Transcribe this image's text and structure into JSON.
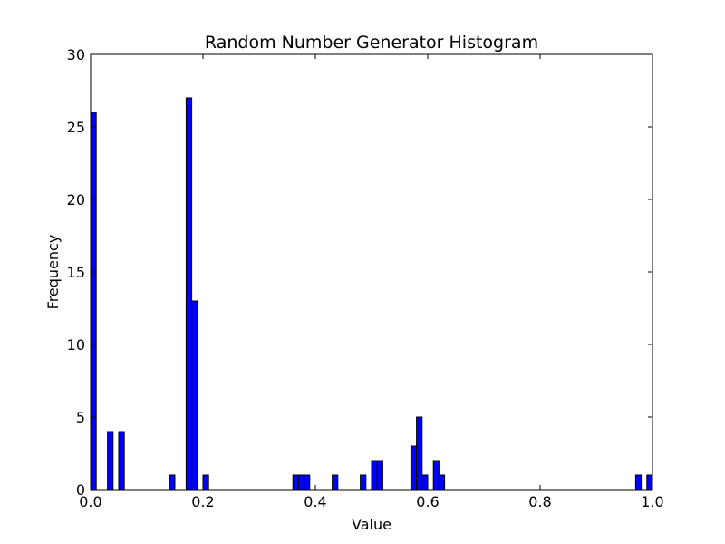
{
  "chart_data": {
    "type": "bar",
    "title": "Random Number Generator Histogram",
    "xlabel": "Value",
    "ylabel": "Frequency",
    "xlim": [
      0,
      1
    ],
    "ylim": [
      0,
      30
    ],
    "bin_width": 0.01,
    "bar_color": "#0000ff",
    "edge_color": "#000000",
    "grid": false,
    "x_ticks": [
      0.0,
      0.2,
      0.4,
      0.6,
      0.8,
      1.0
    ],
    "x_tick_labels": [
      "0.0",
      "0.2",
      "0.4",
      "0.6",
      "0.8",
      "1.0"
    ],
    "y_ticks": [
      0,
      5,
      10,
      15,
      20,
      25,
      30
    ],
    "y_tick_labels": [
      "0",
      "5",
      "10",
      "15",
      "20",
      "25",
      "30"
    ],
    "bins": [
      {
        "x": 0.0,
        "value": 26
      },
      {
        "x": 0.03,
        "value": 4
      },
      {
        "x": 0.05,
        "value": 4
      },
      {
        "x": 0.14,
        "value": 1
      },
      {
        "x": 0.17,
        "value": 27
      },
      {
        "x": 0.18,
        "value": 13
      },
      {
        "x": 0.2,
        "value": 1
      },
      {
        "x": 0.36,
        "value": 1
      },
      {
        "x": 0.37,
        "value": 1
      },
      {
        "x": 0.38,
        "value": 1
      },
      {
        "x": 0.43,
        "value": 1
      },
      {
        "x": 0.48,
        "value": 1
      },
      {
        "x": 0.5,
        "value": 2
      },
      {
        "x": 0.51,
        "value": 2
      },
      {
        "x": 0.57,
        "value": 3
      },
      {
        "x": 0.58,
        "value": 5
      },
      {
        "x": 0.59,
        "value": 1
      },
      {
        "x": 0.61,
        "value": 2
      },
      {
        "x": 0.62,
        "value": 1
      },
      {
        "x": 0.97,
        "value": 1
      },
      {
        "x": 0.99,
        "value": 1
      }
    ]
  }
}
